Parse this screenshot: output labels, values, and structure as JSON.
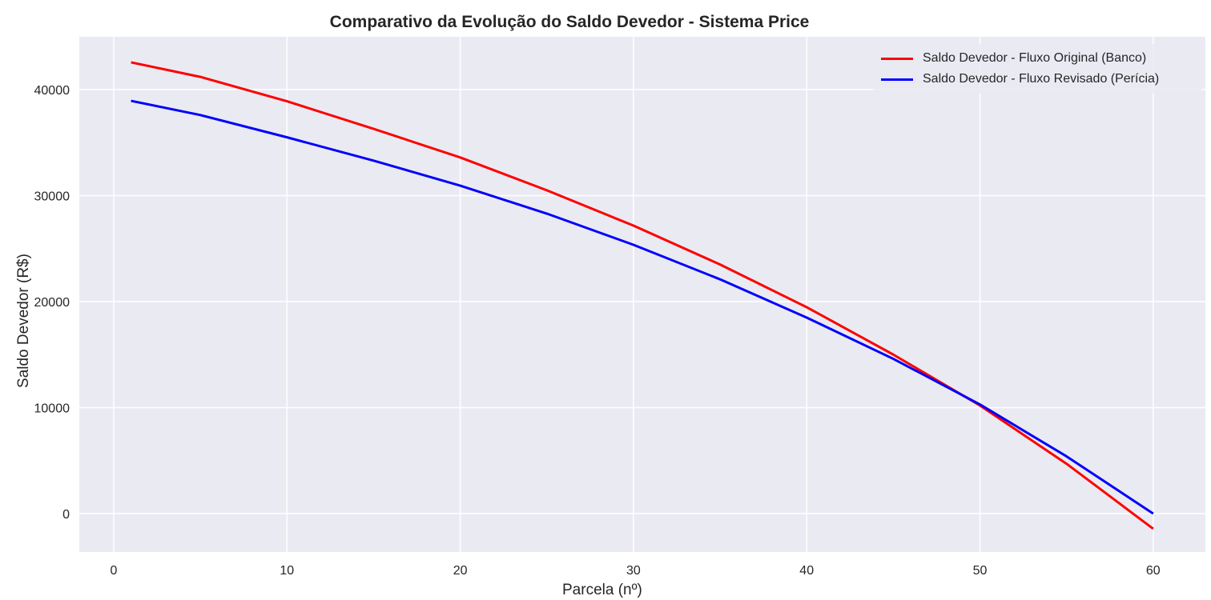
{
  "chart_data": {
    "type": "line",
    "title": "Comparativo da Evolução do Saldo Devedor - Sistema Price",
    "xlabel": "Parcela (nº)",
    "ylabel": "Saldo Devedor (R$)",
    "xlim": [
      -2,
      63
    ],
    "ylim": [
      -3700,
      45000
    ],
    "xticks": [
      0,
      10,
      20,
      30,
      40,
      50,
      60
    ],
    "yticks": [
      0,
      10000,
      20000,
      30000,
      40000
    ],
    "grid": true,
    "legend_position": "upper right",
    "x": [
      1,
      5,
      10,
      15,
      20,
      25,
      30,
      35,
      40,
      45,
      50,
      55,
      60
    ],
    "series": [
      {
        "name": "Saldo Devedor - Fluxo Original (Banco)",
        "color": "#ff0000",
        "values": [
          42570,
          41200,
          38900,
          36300,
          33600,
          30500,
          27170,
          23500,
          19470,
          15000,
          10200,
          4700,
          -1430
        ]
      },
      {
        "name": "Saldo Devedor - Fluxo Revisado (Perícia)",
        "color": "#0000ff",
        "values": [
          38940,
          37600,
          35500,
          33300,
          30940,
          28300,
          25360,
          22100,
          18490,
          14600,
          10300,
          5400,
          0
        ]
      }
    ]
  }
}
